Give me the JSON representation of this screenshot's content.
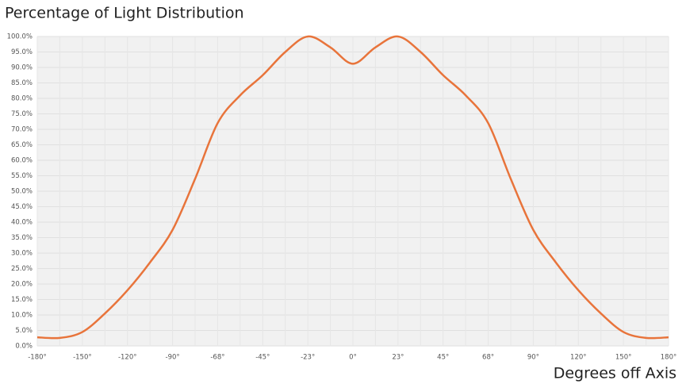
{
  "chart_data": {
    "type": "line",
    "title": "Percentage of Light Distribution",
    "x_label": "Degrees off Axis",
    "categories": [
      "-180°",
      null,
      "-150°",
      null,
      "-120°",
      null,
      "-90°",
      null,
      "-68°",
      null,
      "-45°",
      null,
      "-23°",
      null,
      "0°",
      null,
      "23°",
      null,
      "45°",
      null,
      "68°",
      null,
      "90°",
      null,
      "120°",
      null,
      "150°",
      null,
      "180°"
    ],
    "values": [
      2.8,
      2.6,
      4.5,
      10.5,
      18,
      27,
      37.5,
      54,
      72,
      81,
      87.5,
      95,
      100,
      96.5,
      91.2,
      96.5,
      100,
      95,
      87.5,
      81,
      72,
      54,
      37.5,
      27,
      18,
      10.5,
      4.5,
      2.6,
      2.8
    ],
    "color": "#e8743b",
    "ylim": [
      0,
      100
    ],
    "yticks": [
      {
        "value": 0,
        "label": "0.0%"
      },
      {
        "value": 5,
        "label": "5.0%"
      },
      {
        "value": 10,
        "label": "10.0%"
      },
      {
        "value": 15,
        "label": "15.0%"
      },
      {
        "value": 20,
        "label": "20.0%"
      },
      {
        "value": 25,
        "label": "25.0%"
      },
      {
        "value": 30,
        "label": "30.0%"
      },
      {
        "value": 35,
        "label": "35.0%"
      },
      {
        "value": 40,
        "label": "40.0%"
      },
      {
        "value": 45,
        "label": "45.0%"
      },
      {
        "value": 50,
        "label": "50.0%"
      },
      {
        "value": 55,
        "label": "55.0%"
      },
      {
        "value": 60,
        "label": "60.0%"
      },
      {
        "value": 65,
        "label": "65.0%"
      },
      {
        "value": 70,
        "label": "70.0%"
      },
      {
        "value": 75,
        "label": "75.0%"
      },
      {
        "value": 80,
        "label": "80.0%"
      },
      {
        "value": 85,
        "label": "85.0%"
      },
      {
        "value": 90,
        "label": "90.0%"
      },
      {
        "value": 95,
        "label": "95.0%"
      },
      {
        "value": 100,
        "label": "100.0%"
      }
    ],
    "grid": true
  }
}
